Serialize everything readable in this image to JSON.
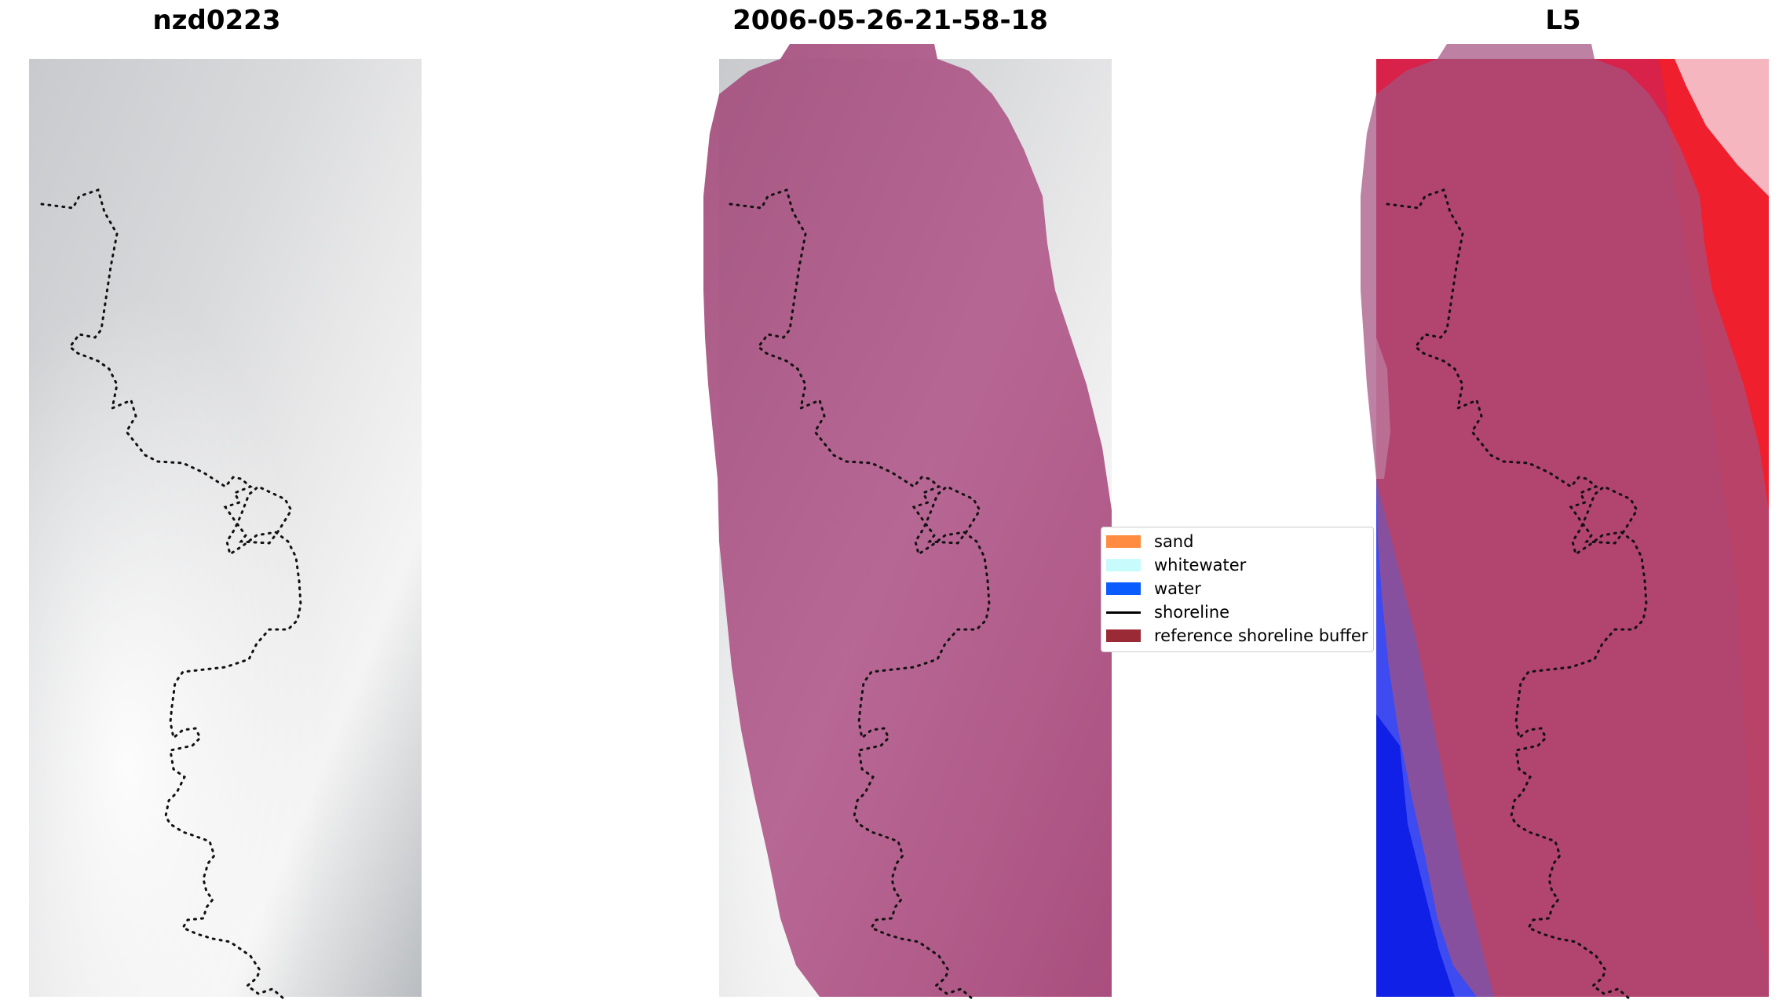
{
  "panels": {
    "left_title": "nzd0223",
    "middle_title": "2006-05-26-21-58-18",
    "right_title": "L5"
  },
  "legend": {
    "items": [
      {
        "label": "sand",
        "color": "#ff8c40"
      },
      {
        "label": "whitewater",
        "color": "#c8fbfb"
      },
      {
        "label": "water",
        "color": "#0a5cff"
      },
      {
        "label": "shoreline",
        "color": "#000000"
      },
      {
        "label": "reference shoreline buffer",
        "color": "#9a2a35"
      }
    ]
  }
}
